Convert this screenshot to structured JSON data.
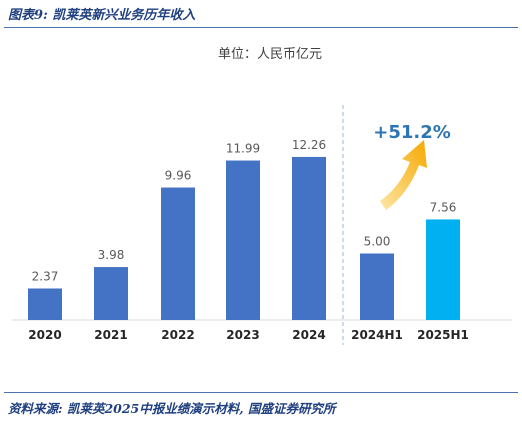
{
  "figure": {
    "title": "图表9: 凯莱英新兴业务历年收入",
    "source": "资料来源: 凯莱英2025中报业绩演示材料, 国盛证券研究所"
  },
  "chart_data": {
    "type": "bar",
    "unit_label": "单位：人民币亿元",
    "categories": [
      "2020",
      "2021",
      "2022",
      "2023",
      "2024",
      "2024H1",
      "2025H1"
    ],
    "values": [
      2.37,
      3.98,
      9.96,
      11.99,
      12.26,
      5.0,
      7.56
    ],
    "value_labels": [
      "2.37",
      "3.98",
      "9.96",
      "11.99",
      "12.26",
      "5.00",
      "7.56"
    ],
    "ylim": [
      0,
      14
    ],
    "grid": false,
    "annotation": "+51.2%",
    "colors": {
      "bar": "#4472c4",
      "bar_highlight": "#00b0f0",
      "arrow": "#f5b21e",
      "annotation": "#2e75b6",
      "label": "#595959",
      "divider": "#9db7d6"
    }
  }
}
